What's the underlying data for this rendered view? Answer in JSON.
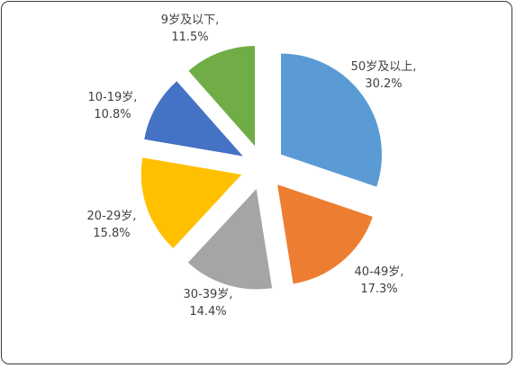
{
  "chart_data": {
    "type": "pie",
    "exploded": true,
    "slices": [
      {
        "category": "50岁及以上",
        "value": 30.2,
        "label_name": "50岁及以上,",
        "label_value": "30.2%",
        "color": "#5B9BD5"
      },
      {
        "category": "40-49岁",
        "value": 17.3,
        "label_name": "40-49岁,",
        "label_value": "17.3%",
        "color": "#ED7D31"
      },
      {
        "category": "30-39岁",
        "value": 14.4,
        "label_name": "30-39岁,",
        "label_value": "14.4%",
        "color": "#A5A5A5"
      },
      {
        "category": "20-29岁",
        "value": 15.8,
        "label_name": "20-29岁,",
        "label_value": "15.8%",
        "color": "#FFC000"
      },
      {
        "category": "10-19岁",
        "value": 10.8,
        "label_name": "10-19岁,",
        "label_value": "10.8%",
        "color": "#4472C4"
      },
      {
        "category": "9岁及以下",
        "value": 11.5,
        "label_name": "9岁及以下,",
        "label_value": "11.5%",
        "color": "#70AD47"
      }
    ]
  }
}
